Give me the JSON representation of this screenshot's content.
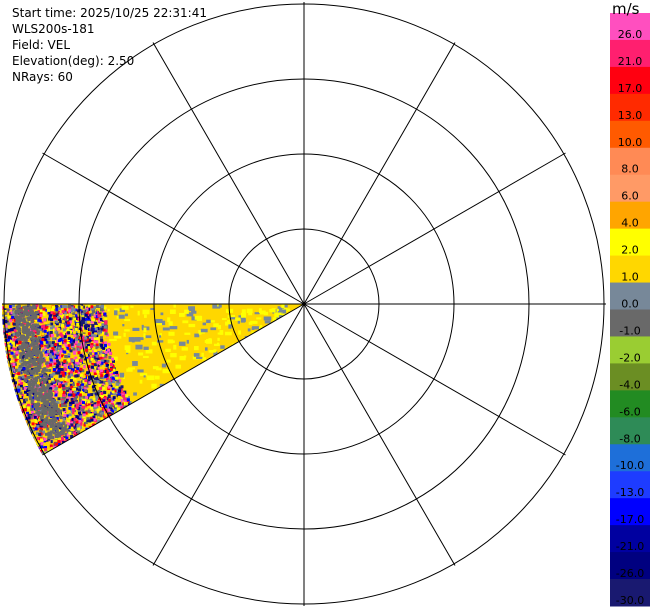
{
  "info": {
    "start_time": "Start time: 2025/10/25 22:31:41",
    "station": "WLS200s-181",
    "field": "Field: VEL",
    "elevation": "Elevation(deg): 2.50",
    "nrays": "NRays: 60"
  },
  "colorbar": {
    "unit": "m/s",
    "levels": [
      {
        "label": "26.0",
        "color": "#ff4fbf"
      },
      {
        "label": "21.0",
        "color": "#ff1f6f"
      },
      {
        "label": "17.0",
        "color": "#ff0010"
      },
      {
        "label": "13.0",
        "color": "#ff2a00"
      },
      {
        "label": "10.0",
        "color": "#ff5a00"
      },
      {
        "label": "8.0",
        "color": "#ff8a55"
      },
      {
        "label": "6.0",
        "color": "#ff9a66"
      },
      {
        "label": "4.0",
        "color": "#ffa500"
      },
      {
        "label": "2.0",
        "color": "#ffff00"
      },
      {
        "label": "1.0",
        "color": "#ffd700"
      },
      {
        "label": "0.0",
        "color": "#778899"
      },
      {
        "label": "-1.0",
        "color": "#696969"
      },
      {
        "label": "-2.0",
        "color": "#9acd32"
      },
      {
        "label": "-4.0",
        "color": "#6b8e23"
      },
      {
        "label": "-6.0",
        "color": "#228b22"
      },
      {
        "label": "-8.0",
        "color": "#2e8b57"
      },
      {
        "label": "-10.0",
        "color": "#1e6fd9"
      },
      {
        "label": "-13.0",
        "color": "#1e3cff"
      },
      {
        "label": "-17.0",
        "color": "#0000ff"
      },
      {
        "label": "-21.0",
        "color": "#0000a0"
      },
      {
        "label": "-26.0",
        "color": "#000080"
      },
      {
        "label": "-30.0",
        "color": "#191970"
      }
    ]
  },
  "chart_data": {
    "type": "heatmap",
    "projection": "polar PPI",
    "range_rings": 4,
    "radial_lines_deg": [
      0,
      30,
      60,
      90,
      120,
      150,
      180,
      210,
      240,
      270,
      300,
      330
    ],
    "sector": {
      "azimuth_start_deg": 180,
      "azimuth_end_deg": 240
    },
    "dominant_velocity_ms": 1.5,
    "dominant_velocity_color": "#ffd700",
    "secondary_velocity_color": "#ffff00",
    "near_zero_color": "#778899",
    "noise_colors": [
      "#ff4fbf",
      "#ff1f6f",
      "#ffff00",
      "#0000ff",
      "#000080",
      "#778899",
      "#ffd700",
      "#191970",
      "#ff0010",
      "#696969"
    ]
  }
}
